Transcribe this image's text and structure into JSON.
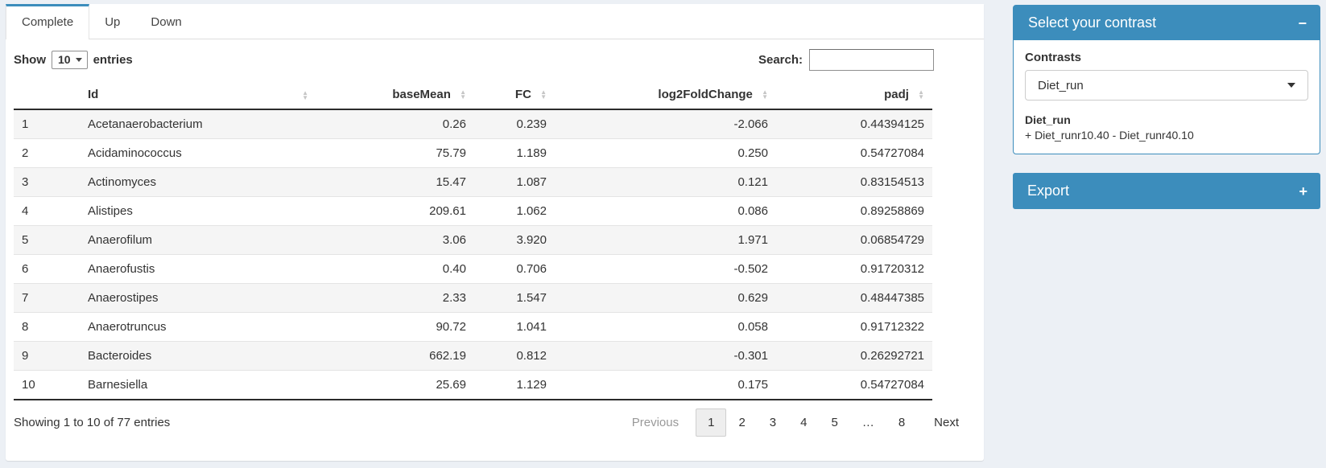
{
  "page": {
    "background": "#ecf0f5",
    "accent": "#3c8dbc"
  },
  "tabs": [
    {
      "label": "Complete",
      "active": true
    },
    {
      "label": "Up",
      "active": false
    },
    {
      "label": "Down",
      "active": false
    }
  ],
  "controls": {
    "show_label": "Show",
    "page_size": "10",
    "entries_label": "entries",
    "search_label": "Search:",
    "search_value": ""
  },
  "table": {
    "columns": [
      "",
      "Id",
      "baseMean",
      "FC",
      "log2FoldChange",
      "padj"
    ],
    "rows": [
      [
        "1",
        "Acetanaerobacterium",
        "0.26",
        "0.239",
        "-2.066",
        "0.44394125"
      ],
      [
        "2",
        "Acidaminococcus",
        "75.79",
        "1.189",
        "0.250",
        "0.54727084"
      ],
      [
        "3",
        "Actinomyces",
        "15.47",
        "1.087",
        "0.121",
        "0.83154513"
      ],
      [
        "4",
        "Alistipes",
        "209.61",
        "1.062",
        "0.086",
        "0.89258869"
      ],
      [
        "5",
        "Anaerofilum",
        "3.06",
        "3.920",
        "1.971",
        "0.06854729"
      ],
      [
        "6",
        "Anaerofustis",
        "0.40",
        "0.706",
        "-0.502",
        "0.91720312"
      ],
      [
        "7",
        "Anaerostipes",
        "2.33",
        "1.547",
        "0.629",
        "0.48447385"
      ],
      [
        "8",
        "Anaerotruncus",
        "90.72",
        "1.041",
        "0.058",
        "0.91712322"
      ],
      [
        "9",
        "Bacteroides",
        "662.19",
        "0.812",
        "-0.301",
        "0.26292721"
      ],
      [
        "10",
        "Barnesiella",
        "25.69",
        "1.129",
        "0.175",
        "0.54727084"
      ]
    ]
  },
  "footer": {
    "info": "Showing 1 to 10 of 77 entries",
    "previous": "Previous",
    "pages": [
      "1",
      "2",
      "3",
      "4",
      "5",
      "…",
      "8"
    ],
    "active_page": "1",
    "next": "Next"
  },
  "contrast_panel": {
    "title": "Select your contrast",
    "collapse_icon": "−",
    "contrasts_label": "Contrasts",
    "selected_contrast": "Diet_run",
    "contrast_name": "Diet_run",
    "contrast_formula": "+ Diet_runr10.40 - Diet_runr40.10"
  },
  "export_panel": {
    "title": "Export",
    "expand_icon": "+"
  }
}
